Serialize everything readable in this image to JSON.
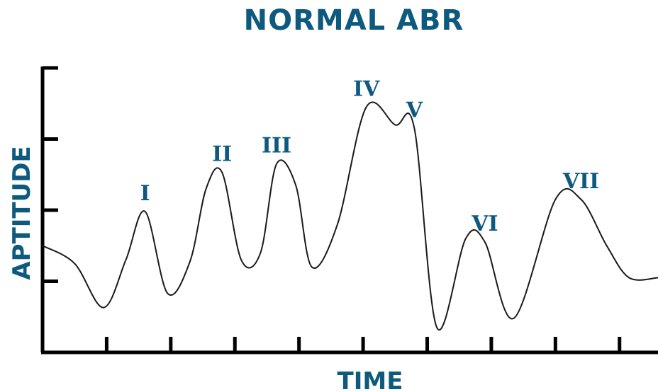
{
  "colors": {
    "accent": "#0e5a7e",
    "line": "#1a1a1a",
    "axis": "#000000"
  },
  "chart_data": {
    "type": "line",
    "title": "NORMAL ABR",
    "xlabel": "TIME",
    "ylabel": "APTITUDE",
    "xlim": [
      0,
      9.6
    ],
    "ylim": [
      0,
      4
    ],
    "x_ticks": [
      1,
      2,
      3,
      4,
      5,
      6,
      7,
      8,
      9
    ],
    "y_ticks": [
      1,
      2,
      3
    ],
    "grid": false,
    "series": [
      {
        "x": [
          0,
          0.5,
          0.95,
          1.3,
          1.6,
          1.95,
          2.3,
          2.55,
          2.8,
          3.1,
          3.4,
          3.65,
          3.95,
          4.2,
          4.6,
          5.05,
          5.5,
          5.8,
          6.15,
          6.6,
          6.9,
          7.35,
          8.0,
          8.4,
          8.8,
          9.15,
          9.6
        ],
        "y": [
          1.5,
          1.25,
          0.63,
          1.3,
          1.98,
          0.83,
          1.28,
          2.3,
          2.53,
          1.3,
          1.4,
          2.65,
          2.35,
          1.2,
          1.8,
          3.45,
          3.2,
          3.15,
          0.35,
          1.6,
          1.55,
          0.48,
          2.15,
          2.15,
          1.5,
          1.05,
          1.05
        ]
      }
    ],
    "annotations": [
      {
        "text": "I",
        "x": 1.6,
        "y": 1.98
      },
      {
        "text": "II",
        "x": 2.8,
        "y": 2.53
      },
      {
        "text": "III",
        "x": 3.65,
        "y": 2.65
      },
      {
        "text": "IV",
        "x": 5.05,
        "y": 3.45
      },
      {
        "text": "V",
        "x": 5.8,
        "y": 3.15
      },
      {
        "text": "VI",
        "x": 6.9,
        "y": 1.55
      },
      {
        "text": "VII",
        "x": 8.4,
        "y": 2.15
      }
    ]
  }
}
